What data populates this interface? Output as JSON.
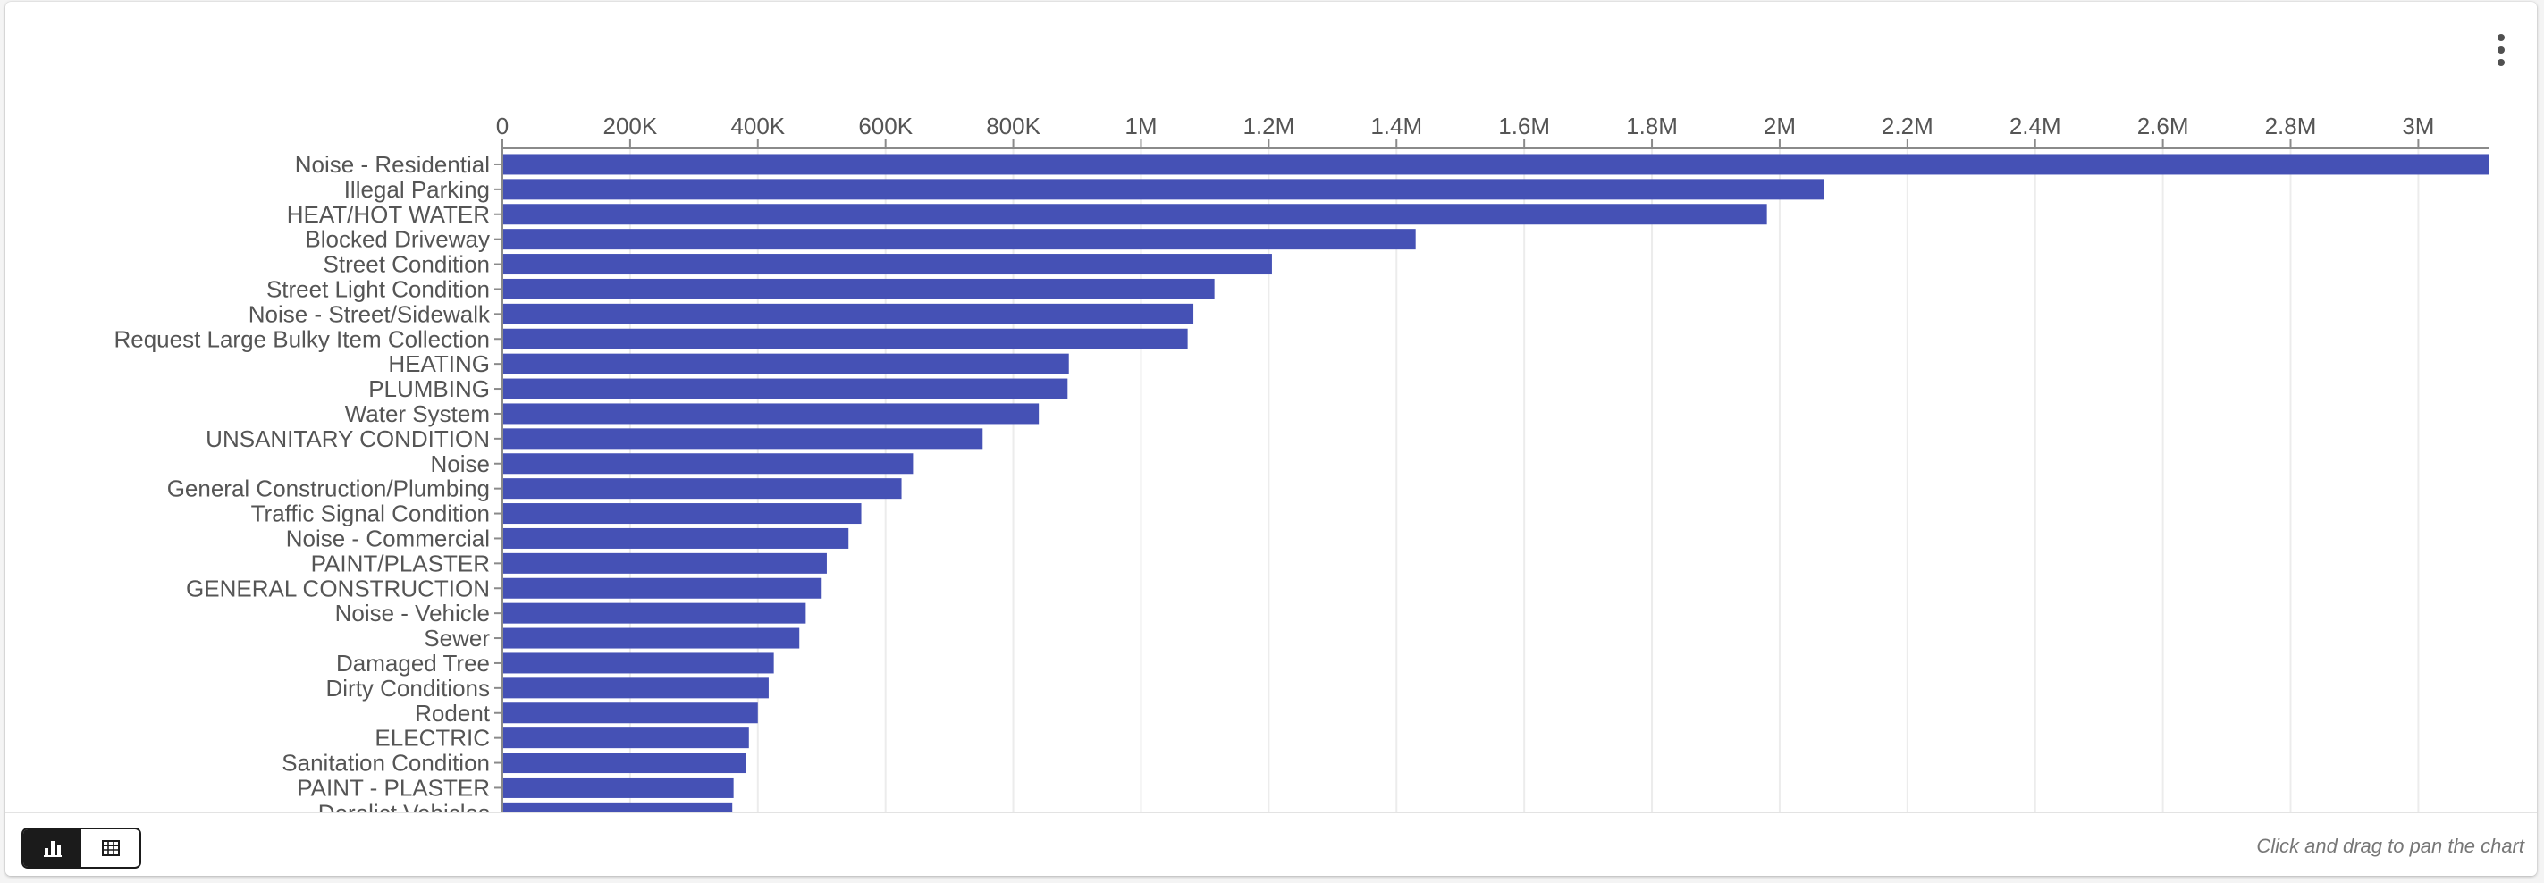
{
  "chart_data": {
    "type": "bar",
    "orientation": "horizontal",
    "categories": [
      "Noise - Residential",
      "Illegal Parking",
      "HEAT/HOT WATER",
      "Blocked Driveway",
      "Street Condition",
      "Street Light Condition",
      "Noise - Street/Sidewalk",
      "Request Large Bulky Item Collection",
      "HEATING",
      "PLUMBING",
      "Water System",
      "UNSANITARY CONDITION",
      "Noise",
      "General Construction/Plumbing",
      "Traffic Signal Condition",
      "Noise - Commercial",
      "PAINT/PLASTER",
      "GENERAL CONSTRUCTION",
      "Noise - Vehicle",
      "Sewer",
      "Damaged Tree",
      "Dirty Conditions",
      "Rodent",
      "ELECTRIC",
      "Sanitation Condition",
      "PAINT - PLASTER",
      "Derelict Vehicles"
    ],
    "values": [
      3110000,
      2070000,
      1980000,
      1430000,
      1205000,
      1115000,
      1082000,
      1073000,
      887000,
      885000,
      840000,
      752000,
      643000,
      625000,
      562000,
      542000,
      508000,
      500000,
      475000,
      465000,
      425000,
      417000,
      400000,
      386000,
      382000,
      362000,
      360000
    ],
    "xaxis": {
      "position": "top",
      "ticks": [
        0,
        200000,
        400000,
        600000,
        800000,
        1000000,
        1200000,
        1400000,
        1600000,
        1800000,
        2000000,
        2200000,
        2400000,
        2600000,
        2800000,
        3000000
      ],
      "tick_labels": [
        "0",
        "200K",
        "400K",
        "600K",
        "800K",
        "1M",
        "1.2M",
        "1.4M",
        "1.6M",
        "1.8M",
        "2M",
        "2.2M",
        "2.4M",
        "2.6M",
        "2.8M",
        "3M"
      ]
    },
    "xlim": [
      0,
      3110000
    ],
    "grid": true,
    "bar_color": "#4551b5",
    "title": "",
    "xlabel": "",
    "ylabel": ""
  },
  "ui": {
    "menu_icon": "more-vert-icon",
    "view_toggle": {
      "options": [
        "chart-view",
        "table-view"
      ],
      "selected": "chart-view",
      "active_color": "#1b1b1b"
    },
    "footer_hint": "Click and drag to pan the chart"
  }
}
